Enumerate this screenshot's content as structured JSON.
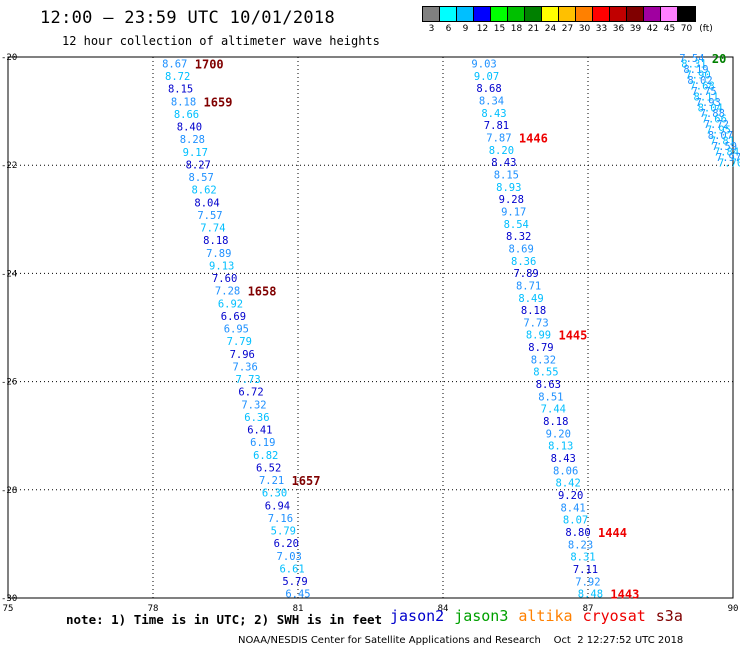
{
  "title": "12:00 – 23:59 UTC 10/01/2018",
  "subtitle": "12 hour collection of altimeter wave heights",
  "legend": {
    "unit_label": "(ft)",
    "colors": [
      "#808080",
      "#00ffff",
      "#00bfff",
      "#0000ff",
      "#00ff00",
      "#00c000",
      "#008000",
      "#ffff00",
      "#ffc000",
      "#ff8000",
      "#ff0000",
      "#c00000",
      "#800000",
      "#a000a0",
      "#ff80ff",
      "#000000"
    ],
    "labels": [
      "3",
      "6",
      "9",
      "12",
      "15",
      "18",
      "21",
      "24",
      "27",
      "30",
      "33",
      "36",
      "39",
      "42",
      "45",
      "70"
    ]
  },
  "map": {
    "x_ticks": [
      "75",
      "78",
      "81",
      "84",
      "87",
      "90"
    ],
    "y_ticks": [
      "20",
      "22",
      "24",
      "26",
      "28",
      "30"
    ]
  },
  "footnote": "note: 1) Time is in UTC; 2) SWH is in feet",
  "missions": [
    {
      "name": "jason2",
      "color": "#0000cc"
    },
    {
      "name": "jason3",
      "color": "#00a000"
    },
    {
      "name": "altika",
      "color": "#ff8000"
    },
    {
      "name": "cryosat",
      "color": "#ee0000"
    },
    {
      "name": "s3a",
      "color": "#800000"
    }
  ],
  "credit": "NOAA/NESDIS Center for Satellite Applications and Research    Oct  2 12:27:52 UTC 2018",
  "tracks": [
    {
      "id": "track-west",
      "lon_start": 78.45,
      "lat_start": 20.12,
      "lon_end": 81.0,
      "lat_end": 29.92,
      "colors": [
        "#1e90ff",
        "#00bfff",
        "#0000cd"
      ],
      "values": [
        "8.67",
        "8.72",
        "8.15",
        "8.18",
        "8.66",
        "8.40",
        "8.28",
        "9.17",
        "8.27",
        "8.57",
        "8.62",
        "8.04",
        "7.57",
        "7.74",
        "8.18",
        "7.89",
        "9.13",
        "7.60",
        "7.28",
        "6.92",
        "6.69",
        "6.95",
        "7.79",
        "7.96",
        "7.36",
        "7.73",
        "6.72",
        "7.32",
        "6.36",
        "6.41",
        "6.19",
        "6.82",
        "6.52",
        "7.21",
        "6.30",
        "6.94",
        "7.16",
        "5.79",
        "6.20",
        "7.03",
        "6.61",
        "5.79",
        "6.45"
      ],
      "times": [
        {
          "label": "1700",
          "index": 0
        },
        {
          "label": "1659",
          "index": 3
        },
        {
          "label": "1658",
          "index": 18
        },
        {
          "label": "1657",
          "index": 33
        }
      ],
      "time_color": "#800000"
    },
    {
      "id": "track-east",
      "lon_start": 84.85,
      "lat_start": 20.12,
      "lon_end": 87.05,
      "lat_end": 29.92,
      "colors": [
        "#1e90ff",
        "#00bfff",
        "#0000cd"
      ],
      "values": [
        "9.03",
        "9.07",
        "8.68",
        "8.34",
        "8.43",
        "7.81",
        "7.87",
        "8.20",
        "8.43",
        "8.15",
        "8.93",
        "9.28",
        "9.17",
        "8.54",
        "8.32",
        "8.69",
        "8.36",
        "7.89",
        "8.71",
        "8.49",
        "8.18",
        "7.73",
        "8.99",
        "8.79",
        "8.32",
        "8.55",
        "8.63",
        "8.51",
        "7.44",
        "8.18",
        "9.20",
        "8.13",
        "8.43",
        "8.06",
        "8.42",
        "9.20",
        "8.41",
        "8.07",
        "8.80",
        "8.23",
        "8.31",
        "7.11",
        "7.92",
        "8.48"
      ],
      "times": [
        {
          "label": "1446",
          "index": 6
        },
        {
          "label": "1445",
          "index": 22
        },
        {
          "label": "1444",
          "index": 38
        },
        {
          "label": "1443",
          "index": 43
        }
      ],
      "time_color": "#ee0000"
    },
    {
      "id": "track-northeast",
      "lon_start": 89.15,
      "lat_start": 20.02,
      "lon_end": 89.95,
      "lat_end": 21.95,
      "colors": [
        "#1e90ff",
        "#00bfff"
      ],
      "values": [
        "7.54",
        "8.31",
        "8.19",
        "7.90",
        "8.02",
        "7.68",
        "7.75",
        "8.11",
        "7.93",
        "8.04",
        "7.88",
        "7.66",
        "7.72",
        "7.95",
        "8.07",
        "7.81",
        "7.59",
        "7.84",
        "7.97",
        "7.70"
      ],
      "times": [
        {
          "label": "20",
          "index": 0
        }
      ],
      "time_color": "#008000"
    }
  ]
}
